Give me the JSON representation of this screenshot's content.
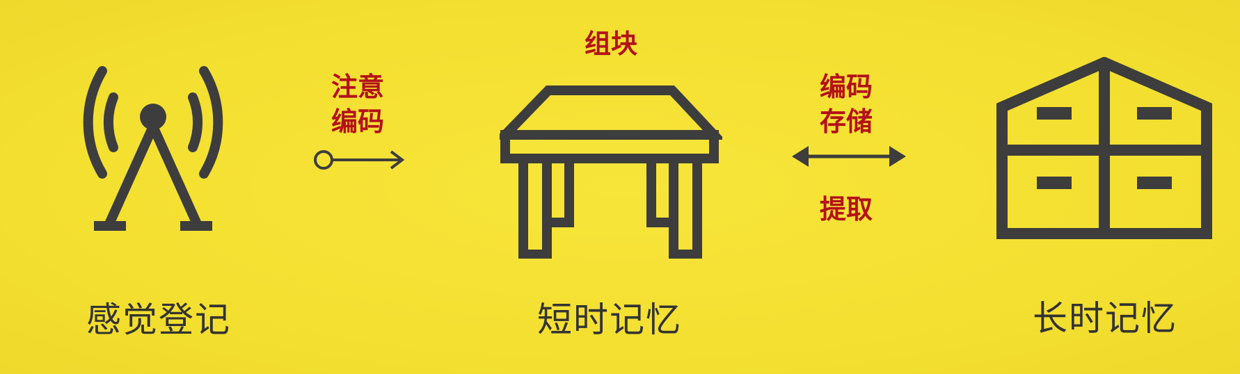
{
  "stages": {
    "sensory": {
      "label": "感觉登记"
    },
    "short_term": {
      "label": "短时记忆"
    },
    "long_term": {
      "label": "长时记忆"
    }
  },
  "process_labels": {
    "chunking": "组块",
    "attention": "注意",
    "encoding_1": "编码",
    "encoding_2": "编码",
    "storage": "存储",
    "retrieval": "提取"
  },
  "icons": {
    "sensory": "antenna-icon",
    "short_term": "table-icon",
    "long_term": "warehouse-icon",
    "forward_arrow": "arrow-right-icon",
    "bidirectional_arrow": "arrow-both-icon"
  },
  "colors": {
    "background": "#f5e234",
    "icon": "#3d3d3d",
    "label": "#333333",
    "process": "#b4111a"
  }
}
